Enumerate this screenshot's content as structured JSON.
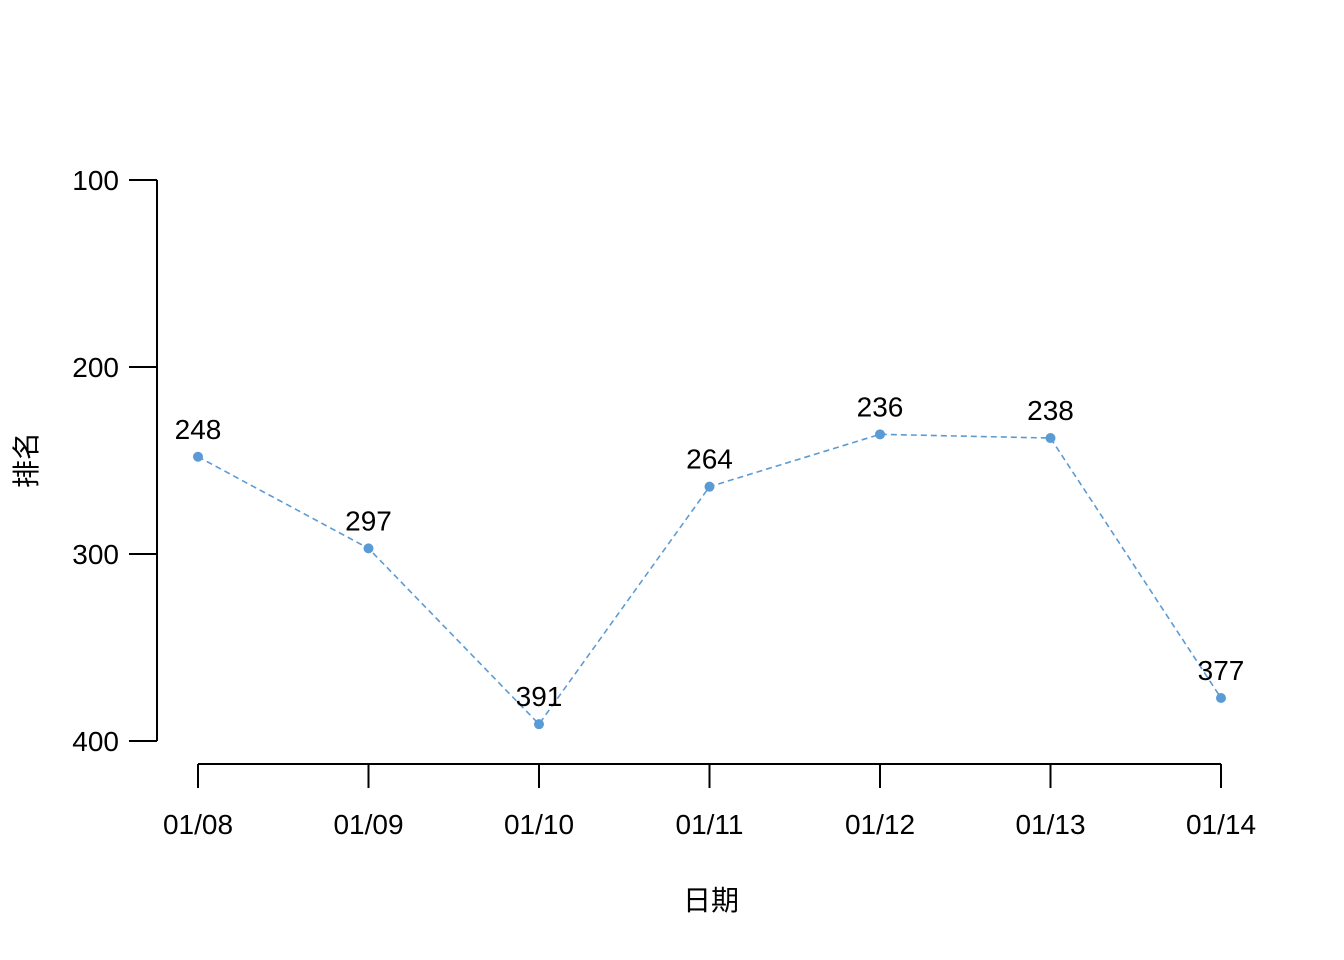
{
  "chart_data": {
    "type": "line",
    "title": "",
    "xlabel": "日期",
    "ylabel": "排名",
    "categories": [
      "01/08",
      "01/09",
      "01/10",
      "01/11",
      "01/12",
      "01/13",
      "01/14"
    ],
    "series": [
      {
        "name": "排名",
        "values": [
          248,
          297,
          391,
          264,
          236,
          238,
          377
        ],
        "color": "#5b9bd5"
      }
    ],
    "ylim": [
      100,
      400
    ],
    "y_reversed": true,
    "yticks": [
      100,
      200,
      300,
      400
    ],
    "grid": false,
    "line_style": "dashed",
    "marker": "circle"
  }
}
